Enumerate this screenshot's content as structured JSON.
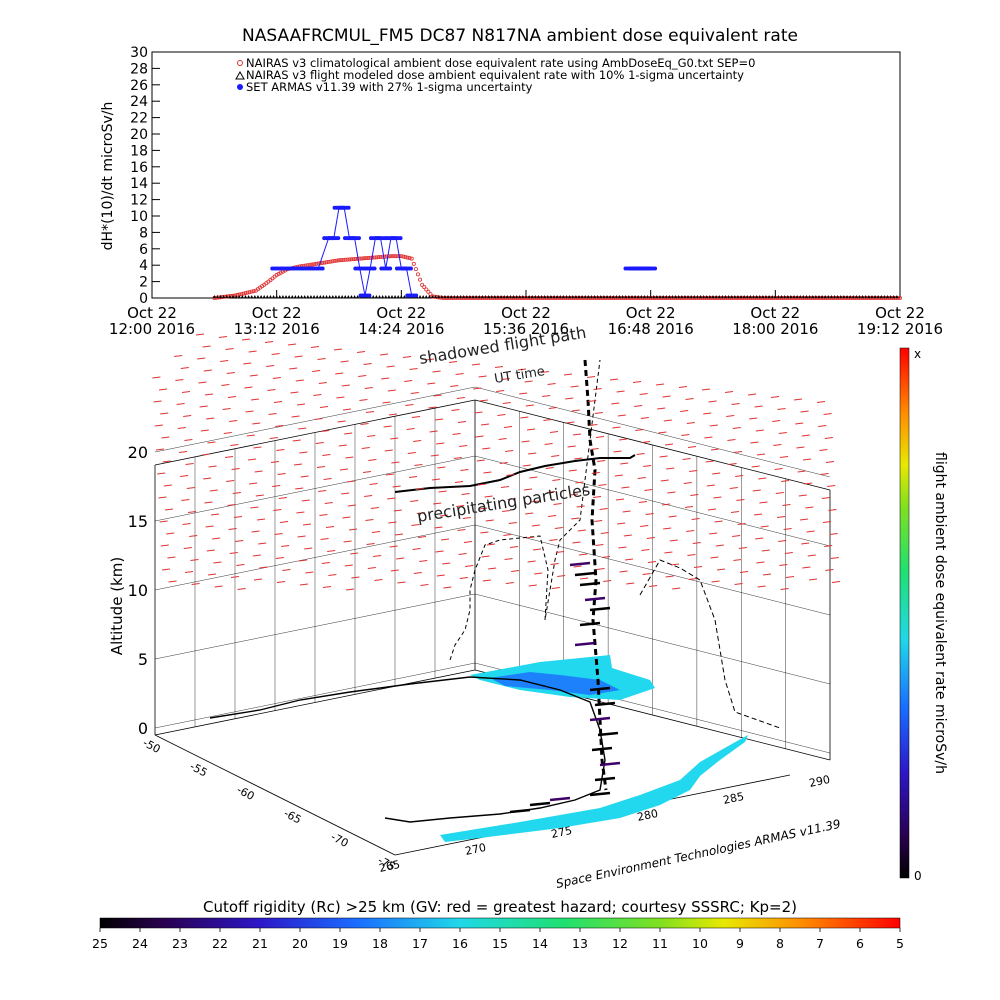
{
  "title": "NASAAFRCMUL_FM5 DC87 N817NA ambient dose equivalent rate",
  "colors": {
    "nairas_climatological": "#e03030",
    "nairas_flight": "#000000",
    "armas": "#1a1aff",
    "cyan_region": "#22d8ee"
  },
  "chart_data": [
    {
      "type": "scatter",
      "ylabel": "dH*(10)/dt microSv/h",
      "ylim": [
        0,
        30
      ],
      "yticks": [
        "0",
        "2",
        "4",
        "6",
        "8",
        "10",
        "12",
        "14",
        "16",
        "18",
        "20",
        "22",
        "24",
        "26",
        "28",
        "30"
      ],
      "xlim_hours": [
        12.0,
        19.2
      ],
      "xticks": [
        {
          "day": "Oct 22",
          "time": "12:00 2016"
        },
        {
          "day": "Oct 22",
          "time": "13:12 2016"
        },
        {
          "day": "Oct 22",
          "time": "14:24 2016"
        },
        {
          "day": "Oct 22",
          "time": "15:36 2016"
        },
        {
          "day": "Oct 22",
          "time": "16:48 2016"
        },
        {
          "day": "Oct 22",
          "time": "18:00 2016"
        },
        {
          "day": "Oct 22",
          "time": "19:12 2016"
        }
      ],
      "legend_position": "top",
      "series": [
        {
          "name": "NAIRAS v3 climatological ambient dose equivalent rate using AmbDoseEq_G0.txt SEP=0",
          "x_hours": [
            12.6,
            12.8,
            13.0,
            13.1,
            13.2,
            13.3,
            13.4,
            13.5,
            13.6,
            13.7,
            13.8,
            13.9,
            14.0,
            14.1,
            14.2,
            14.3,
            14.4,
            14.5,
            14.6,
            14.7,
            14.8,
            15.0,
            15.5,
            16.0,
            16.5,
            17.0,
            17.5,
            18.0,
            18.5,
            19.2
          ],
          "y": [
            0,
            0.3,
            0.9,
            1.8,
            2.8,
            3.5,
            3.8,
            4.0,
            4.2,
            4.4,
            4.6,
            4.7,
            4.8,
            4.9,
            5.0,
            5.1,
            5.1,
            4.8,
            1.6,
            0.2,
            0,
            0,
            0,
            0,
            0,
            0,
            0,
            0,
            0,
            0
          ]
        },
        {
          "name": "NAIRAS v3 flight modeled dose ambient equivalent rate with 10% 1-sigma uncertainty",
          "x_hours": [
            12.6,
            13.0,
            13.5,
            14.0,
            14.5,
            15.0,
            15.5,
            16.0,
            16.5,
            17.0,
            17.5,
            18.0,
            18.5,
            19.2
          ],
          "y": [
            0,
            0,
            0,
            0,
            0,
            0,
            0,
            0,
            0,
            0,
            0,
            0,
            0,
            0
          ]
        },
        {
          "name": "SET ARMAS v11.39 with 27% 1-sigma uncertainty",
          "x_hours": [
            13.2,
            13.3,
            13.4,
            13.5,
            13.6,
            13.7,
            13.75,
            13.8,
            13.85,
            13.9,
            13.95,
            14.0,
            14.05,
            14.1,
            14.15,
            14.2,
            14.25,
            14.3,
            14.35,
            14.4,
            14.45,
            14.5,
            16.6,
            16.65,
            16.7,
            16.75,
            16.8
          ],
          "y": [
            3.6,
            3.6,
            3.6,
            3.6,
            3.6,
            7.3,
            7.3,
            11.0,
            11.0,
            7.3,
            7.3,
            3.6,
            0.3,
            3.6,
            7.3,
            7.3,
            3.6,
            7.3,
            7.3,
            3.6,
            3.6,
            0.3,
            3.6,
            3.6,
            3.6,
            3.6,
            3.6
          ]
        }
      ]
    },
    {
      "type": "scatter",
      "ylabel": "Altitude (km)",
      "zticks": [
        "0",
        "5",
        "10",
        "15",
        "20"
      ],
      "lat_ticks": [
        "-50",
        "-55",
        "-60",
        "-65",
        "-70",
        "-75"
      ],
      "lon_ticks": [
        "265",
        "270",
        "275",
        "280",
        "285",
        "290"
      ],
      "annotations": [
        "shadowed flight path",
        "UT time",
        "precipitating particles"
      ],
      "credit": "Space Environment Technologies ARMAS v11.39",
      "colorbar": {
        "label": "flight ambient dose equivalent rate microSv/h",
        "top": "x",
        "bottom": "0"
      }
    },
    {
      "type": "heatmap",
      "title": "Cutoff rigidity (Rc) >25 km (GV: red = greatest hazard; courtesy SSSRC; Kp=2)",
      "ticks": [
        "25",
        "24",
        "23",
        "22",
        "21",
        "20",
        "19",
        "18",
        "17",
        "16",
        "15",
        "14",
        "13",
        "12",
        "11",
        "10",
        "9",
        "8",
        "7",
        "6",
        "5"
      ]
    }
  ]
}
